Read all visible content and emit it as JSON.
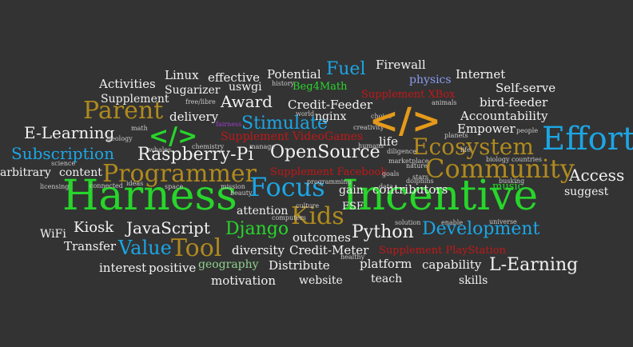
{
  "palette": {
    "background": "#333333",
    "white": "#f2f2f2",
    "green": "#27d52b",
    "blue": "#1ba6e6",
    "gold": "#b08a1e",
    "red": "#c21818",
    "grey": "#c9c9c9",
    "lightblue": "#8a9bf0",
    "lightgreen": "#8fd18f",
    "orange": "#e69a1a",
    "purple": "#9b3fd0"
  },
  "words": [
    {
      "text": "Harness",
      "color": "green"
    },
    {
      "text": "Incentive",
      "color": "green"
    },
    {
      "text": "Focus",
      "color": "blue"
    },
    {
      "text": "Effort",
      "color": "blue"
    },
    {
      "text": "Community",
      "color": "gold"
    },
    {
      "text": "Programmer",
      "color": "gold"
    },
    {
      "text": "Ecosystem",
      "color": "gold"
    },
    {
      "text": "Parent",
      "color": "gold"
    },
    {
      "text": "Kids",
      "color": "gold"
    },
    {
      "text": "Tool",
      "color": "gold"
    },
    {
      "text": "Value",
      "color": "blue"
    },
    {
      "text": "Development",
      "color": "blue"
    },
    {
      "text": "Subscription",
      "color": "blue"
    },
    {
      "text": "Stimulate",
      "color": "blue"
    },
    {
      "text": "Fuel",
      "color": "blue"
    },
    {
      "text": "Django",
      "color": "green"
    },
    {
      "text": "music",
      "color": "green"
    },
    {
      "text": "Beg4Math",
      "color": "green"
    },
    {
      "text": "geography",
      "color": "lightgreen"
    },
    {
      "text": "physics",
      "color": "lightblue"
    },
    {
      "text": "Supplement XBox",
      "color": "red"
    },
    {
      "text": "Supplement VideoGames",
      "color": "red"
    },
    {
      "text": "Supplement Facebook",
      "color": "red"
    },
    {
      "text": "Supplement PlayStation",
      "color": "red"
    },
    {
      "text": "OpenSource",
      "color": "white"
    },
    {
      "text": "Raspberry-Pi",
      "color": "white"
    },
    {
      "text": "JavaScript",
      "color": "white"
    },
    {
      "text": "Python",
      "color": "white"
    },
    {
      "text": "L-Earning",
      "color": "white"
    },
    {
      "text": "E-Learning",
      "color": "white"
    },
    {
      "text": "Access",
      "color": "white"
    },
    {
      "text": "Award",
      "color": "white"
    },
    {
      "text": "Kiosk",
      "color": "white"
    },
    {
      "text": "Transfer",
      "color": "white"
    },
    {
      "text": "WiFi",
      "color": "white"
    },
    {
      "text": "outcomes",
      "color": "white"
    },
    {
      "text": "diversity",
      "color": "white"
    },
    {
      "text": "Credit-Meter",
      "color": "white"
    },
    {
      "text": "Credit-Feeder",
      "color": "white"
    },
    {
      "text": "Distribute",
      "color": "white"
    },
    {
      "text": "platform",
      "color": "white"
    },
    {
      "text": "capability",
      "color": "white"
    },
    {
      "text": "skills",
      "color": "white"
    },
    {
      "text": "teach",
      "color": "white"
    },
    {
      "text": "website",
      "color": "white"
    },
    {
      "text": "motivation",
      "color": "white"
    },
    {
      "text": "interest",
      "color": "white"
    },
    {
      "text": "positive",
      "color": "white"
    },
    {
      "text": "attention",
      "color": "white"
    },
    {
      "text": "FSF",
      "color": "white"
    },
    {
      "text": "gain",
      "color": "white"
    },
    {
      "text": "contributors",
      "color": "white"
    },
    {
      "text": "life",
      "color": "white"
    },
    {
      "text": "Empower",
      "color": "white"
    },
    {
      "text": "Accountability",
      "color": "white"
    },
    {
      "text": "bird-feeder",
      "color": "white"
    },
    {
      "text": "Self-serve",
      "color": "white"
    },
    {
      "text": "Internet",
      "color": "white"
    },
    {
      "text": "Firewall",
      "color": "white"
    },
    {
      "text": "nginx",
      "color": "white"
    },
    {
      "text": "Potential",
      "color": "white"
    },
    {
      "text": "uswgi",
      "color": "white"
    },
    {
      "text": "effective",
      "color": "white"
    },
    {
      "text": "Linux",
      "color": "white"
    },
    {
      "text": "Activities",
      "color": "white"
    },
    {
      "text": "Sugarizer",
      "color": "white"
    },
    {
      "text": "Supplement",
      "color": "white"
    },
    {
      "text": "delivery",
      "color": "white"
    },
    {
      "text": "content",
      "color": "white"
    },
    {
      "text": "arbitrary",
      "color": "white"
    },
    {
      "text": "suggest",
      "color": "white"
    },
    {
      "text": "free/libre",
      "color": "grey"
    },
    {
      "text": "history",
      "color": "grey"
    },
    {
      "text": "animals",
      "color": "grey"
    },
    {
      "text": "world",
      "color": "grey"
    },
    {
      "text": "creativity",
      "color": "grey"
    },
    {
      "text": "choice",
      "color": "grey"
    },
    {
      "text": "planets",
      "color": "grey"
    },
    {
      "text": "people",
      "color": "grey"
    },
    {
      "text": "math",
      "color": "grey"
    },
    {
      "text": "geology",
      "color": "grey"
    },
    {
      "text": "whales",
      "color": "grey"
    },
    {
      "text": "chemistry",
      "color": "grey"
    },
    {
      "text": "manage",
      "color": "grey"
    },
    {
      "text": "humans",
      "color": "grey"
    },
    {
      "text": "culture",
      "color": "grey"
    },
    {
      "text": "computers",
      "color": "grey"
    },
    {
      "text": "beauty",
      "color": "grey"
    },
    {
      "text": "mission",
      "color": "grey"
    },
    {
      "text": "space",
      "color": "grey"
    },
    {
      "text": "ideas",
      "color": "grey"
    },
    {
      "text": "science",
      "color": "grey"
    },
    {
      "text": "licensing",
      "color": "grey"
    },
    {
      "text": "connected",
      "color": "grey"
    },
    {
      "text": "diligence",
      "color": "grey"
    },
    {
      "text": "marketplace",
      "color": "grey"
    },
    {
      "text": "goals",
      "color": "grey"
    },
    {
      "text": "nature",
      "color": "grey"
    },
    {
      "text": "stars",
      "color": "grey"
    },
    {
      "text": "dolphins",
      "color": "grey"
    },
    {
      "text": "data",
      "color": "grey"
    },
    {
      "text": "programming",
      "color": "grey"
    },
    {
      "text": "solution",
      "color": "grey"
    },
    {
      "text": "enable",
      "color": "grey"
    },
    {
      "text": "universe",
      "color": "grey"
    },
    {
      "text": "healthy",
      "color": "grey"
    },
    {
      "text": "biology",
      "color": "grey"
    },
    {
      "text": "countries",
      "color": "grey"
    },
    {
      "text": "busking",
      "color": "grey"
    },
    {
      "text": "life",
      "color": "grey"
    },
    {
      "text": "fairness",
      "color": "purple"
    },
    {
      "text": "</>",
      "color": "green"
    },
    {
      "text": "</>",
      "color": "orange"
    }
  ]
}
